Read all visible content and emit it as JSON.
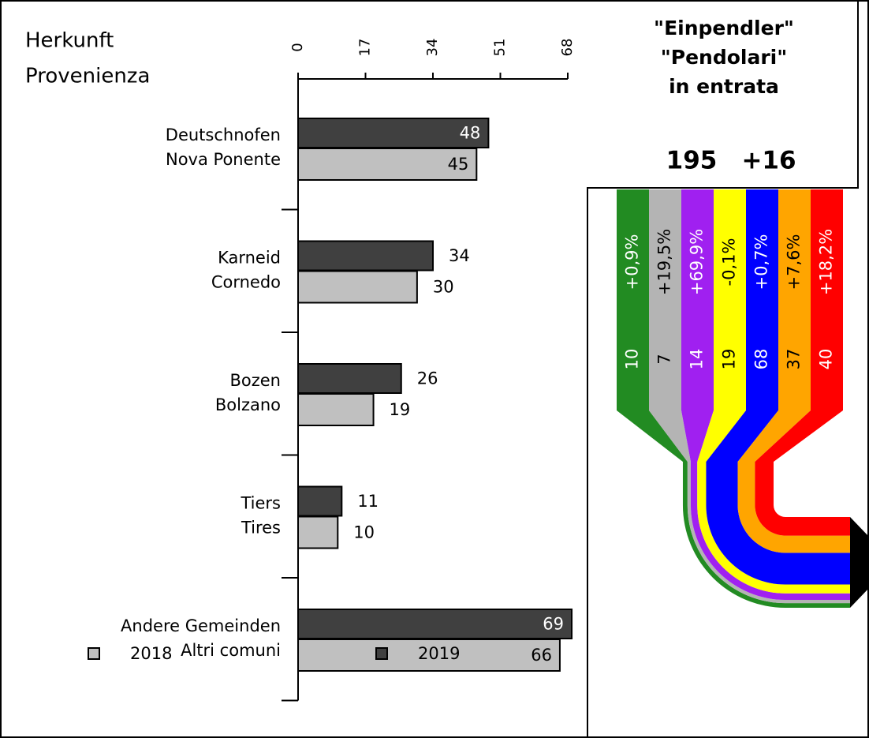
{
  "chart_data": [
    {
      "type": "hbar",
      "title": [
        "Herkunft",
        "Provenienza"
      ],
      "categories": [
        [
          "Deutschnofen",
          "Nova Ponente"
        ],
        [
          "Karneid",
          "Cornedo"
        ],
        [
          "Bozen",
          "Bolzano"
        ],
        [
          "Tiers",
          "Tires"
        ],
        [
          "Andere Gemeinden",
          "Altri comuni"
        ]
      ],
      "series": [
        {
          "name": "2019",
          "color": "#404040",
          "values": [
            48,
            34,
            26,
            11,
            69
          ]
        },
        {
          "name": "2018",
          "color": "#c0c0c0",
          "values": [
            45,
            30,
            19,
            10,
            66
          ]
        }
      ],
      "xlim": [
        0,
        68
      ],
      "xticks": [
        0,
        17,
        34,
        51,
        68
      ]
    },
    {
      "type": "flow",
      "title": [
        "\"Einpendler\"",
        "\"Pendolari\"",
        "in entrata"
      ],
      "total": 195,
      "total_change": {
        "value": 16,
        "label": "+16"
      },
      "values": [
        10,
        7,
        14,
        19,
        68,
        37,
        40
      ],
      "changes": [
        {
          "value": 0.9,
          "label": "+0,9%"
        },
        {
          "value": 19.5,
          "label": "+19,5%"
        },
        {
          "value": 69.9,
          "label": "+69,9%"
        },
        {
          "value": -0.1,
          "label": "-0,1%"
        },
        {
          "value": 0.7,
          "label": "+0,7%"
        },
        {
          "value": 7.6,
          "label": "+7,6%"
        },
        {
          "value": 18.2,
          "label": "+18,2%"
        }
      ],
      "colors": [
        "#228b22",
        "#b4b4b4",
        "#a020f0",
        "#ffff00",
        "#0000ff",
        "#ffa500",
        "#ff0000"
      ],
      "label_colors": [
        "#ffffff",
        "#000000",
        "#ffffff",
        "#000000",
        "#ffffff",
        "#000000",
        "#ffffff"
      ]
    }
  ]
}
